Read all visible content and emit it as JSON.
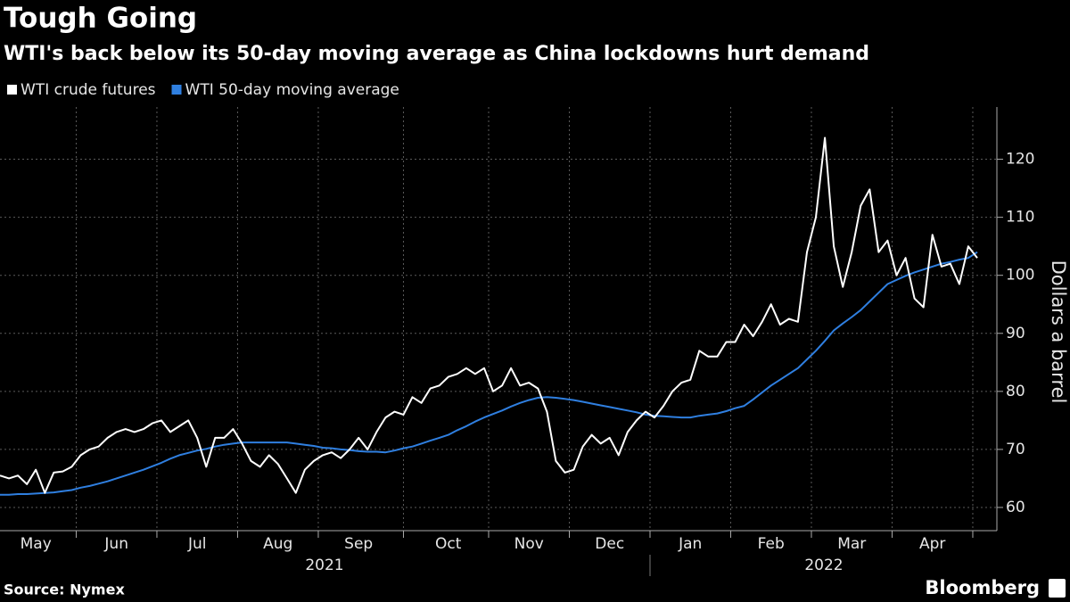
{
  "chart_data": {
    "type": "line",
    "title": "Tough Going",
    "subtitle": "WTI's back below its 50-day moving average as China lockdowns hurt demand",
    "y_label": "Dollars a barrel",
    "source": "Source: Nymex",
    "brand": "Bloomberg",
    "x_group_labels": [
      "2021",
      "2022"
    ],
    "categories": [
      null,
      null,
      null,
      null,
      "May",
      null,
      null,
      null,
      null,
      null,
      null,
      null,
      null,
      "Jun",
      null,
      null,
      null,
      null,
      null,
      null,
      null,
      null,
      "Jul",
      null,
      null,
      null,
      null,
      null,
      null,
      null,
      null,
      "Aug",
      null,
      null,
      null,
      null,
      null,
      null,
      null,
      null,
      "Sep",
      null,
      null,
      null,
      null,
      null,
      null,
      null,
      null,
      null,
      "Oct",
      null,
      null,
      null,
      null,
      null,
      null,
      null,
      null,
      "Nov",
      null,
      null,
      null,
      null,
      null,
      null,
      null,
      null,
      "Dec",
      null,
      null,
      null,
      null,
      null,
      null,
      null,
      null,
      "Jan",
      null,
      null,
      null,
      null,
      null,
      null,
      null,
      null,
      "Feb",
      null,
      null,
      null,
      null,
      null,
      null,
      null,
      null,
      "Mar",
      null,
      null,
      null,
      null,
      null,
      null,
      null,
      null,
      "Apr",
      null,
      null,
      null,
      null,
      null
    ],
    "series": [
      {
        "name": "WTI crude futures",
        "color": "#ffffff",
        "values": [
          65.5,
          65,
          65.5,
          64,
          66.5,
          62.5,
          66,
          66.2,
          67,
          69,
          70,
          70.5,
          72,
          73,
          73.5,
          73,
          73.5,
          74.5,
          75,
          73,
          74,
          75,
          72,
          67,
          72,
          72,
          73.5,
          71,
          68,
          67,
          69,
          67.5,
          65,
          62.5,
          66.5,
          68,
          69,
          69.5,
          68.5,
          70,
          72,
          70,
          73,
          75.5,
          76.5,
          76,
          79,
          78,
          80.5,
          81,
          82.5,
          83,
          84,
          83,
          84,
          80,
          81,
          84,
          81,
          81.5,
          80.5,
          76.5,
          68,
          66,
          66.5,
          70.5,
          72.5,
          71,
          72,
          69,
          73,
          75,
          76.5,
          75.5,
          77.5,
          80,
          81.5,
          82,
          87,
          86,
          86,
          88.5,
          88.5,
          91.5,
          89.5,
          92,
          95,
          91.5,
          92.5,
          92,
          104,
          110,
          123.7,
          105,
          98,
          104,
          112,
          114.8,
          104,
          106,
          100,
          103,
          96,
          94.5,
          107,
          101.5,
          102,
          98.5,
          105,
          103
        ]
      },
      {
        "name": "WTI 50-day moving average",
        "color": "#2f7fe0",
        "values": [
          62.2,
          62.2,
          62.3,
          62.3,
          62.4,
          62.5,
          62.6,
          62.8,
          63,
          63.4,
          63.7,
          64.1,
          64.5,
          65,
          65.5,
          66,
          66.5,
          67.1,
          67.7,
          68.4,
          69,
          69.4,
          69.8,
          70.1,
          70.5,
          70.8,
          71,
          71.2,
          71.2,
          71.2,
          71.2,
          71.2,
          71.2,
          71,
          70.8,
          70.6,
          70.3,
          70.2,
          70,
          69.9,
          69.7,
          69.6,
          69.6,
          69.5,
          69.8,
          70.2,
          70.5,
          71,
          71.5,
          72,
          72.5,
          73.3,
          74,
          74.8,
          75.5,
          76.1,
          76.7,
          77.4,
          78,
          78.5,
          78.9,
          79,
          78.9,
          78.7,
          78.5,
          78.2,
          77.9,
          77.6,
          77.3,
          77,
          76.7,
          76.4,
          76,
          75.8,
          75.7,
          75.6,
          75.5,
          75.5,
          75.8,
          76,
          76.2,
          76.6,
          77.1,
          77.5,
          78.6,
          79.8,
          81,
          82,
          83,
          84,
          85.5,
          87,
          88.7,
          90.5,
          91.7,
          92.8,
          94,
          95.5,
          97,
          98.5,
          99.2,
          99.9,
          100.5,
          101,
          101.5,
          102,
          102.3,
          102.7,
          103,
          104
        ]
      }
    ],
    "ylim": [
      56,
      129
    ],
    "yticks": [
      60,
      70,
      80,
      90,
      100,
      110,
      120
    ],
    "grid": true
  }
}
